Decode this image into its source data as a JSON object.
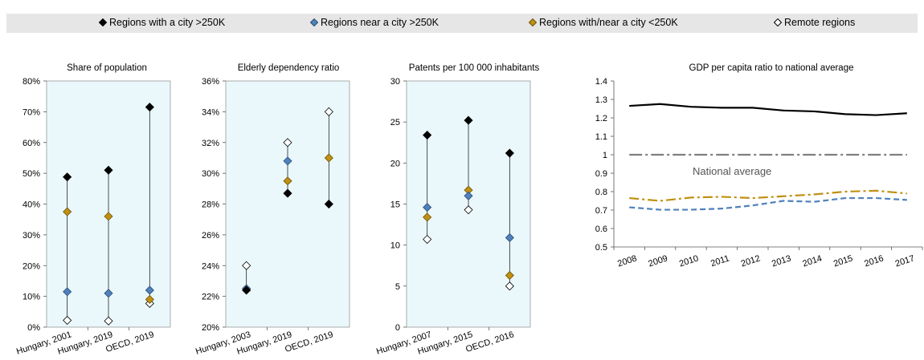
{
  "legend": [
    {
      "label": "Regions with a city >250K",
      "color": "#000000",
      "stroke": "#000000"
    },
    {
      "label": "Regions near a city >250K",
      "color": "#4f81bd",
      "stroke": "#2a4a70"
    },
    {
      "label": "Regions with/near a city <250K",
      "color": "#c09012",
      "stroke": "#6e530a"
    },
    {
      "label": "Remote regions",
      "color": "#ffffff",
      "stroke": "#000000"
    }
  ],
  "colors": {
    "panel_bg": "#eaf8fc",
    "national_line": "#7f7f7f",
    "near_line": "#4f81bd",
    "small_line": "#c09012"
  },
  "chart_data": [
    {
      "type": "scatter",
      "title": "Share of population",
      "categories": [
        "Hungary, 2001",
        "Hungary, 2019",
        "OECD, 2019"
      ],
      "ylim": [
        0,
        80
      ],
      "yticks": [
        0,
        10,
        20,
        30,
        40,
        50,
        60,
        70,
        80
      ],
      "ytick_labels": [
        "0%",
        "10%",
        "20%",
        "30%",
        "40%",
        "50%",
        "60%",
        "70%",
        "80%"
      ],
      "series": [
        {
          "name": "Regions with a city >250K",
          "values": [
            48.8,
            51,
            71.5
          ]
        },
        {
          "name": "Regions near a city >250K",
          "values": [
            11.5,
            11,
            12
          ]
        },
        {
          "name": "Regions with/near a city <250K",
          "values": [
            37.5,
            36,
            9
          ]
        },
        {
          "name": "Remote regions",
          "values": [
            2.2,
            2,
            7.7
          ]
        }
      ]
    },
    {
      "type": "scatter",
      "title": "Elderly dependency ratio",
      "categories": [
        "Hungary, 2003",
        "Hungary, 2019",
        "OECD, 2019"
      ],
      "ylim": [
        20,
        36
      ],
      "yticks": [
        20,
        22,
        24,
        26,
        28,
        30,
        32,
        34,
        36
      ],
      "ytick_labels": [
        "20%",
        "22%",
        "24%",
        "26%",
        "28%",
        "30%",
        "32%",
        "34%",
        "36%"
      ],
      "series": [
        {
          "name": "Regions with a city >250K",
          "values": [
            22.4,
            28.7,
            28
          ]
        },
        {
          "name": "Regions near a city >250K",
          "values": [
            22.5,
            30.8,
            null
          ]
        },
        {
          "name": "Regions with/near a city <250K",
          "values": [
            22.5,
            29.5,
            31
          ]
        },
        {
          "name": "Remote regions",
          "values": [
            24,
            32,
            34
          ]
        }
      ]
    },
    {
      "type": "scatter",
      "title": "Patents per 100 000 inhabitants",
      "categories": [
        "Hungary, 2007",
        "Hungary, 2015",
        "OECD, 2016"
      ],
      "ylim": [
        0,
        30
      ],
      "yticks": [
        0,
        5,
        10,
        15,
        20,
        25,
        30
      ],
      "ytick_labels": [
        "0",
        "5",
        "10",
        "15",
        "20",
        "25",
        "30"
      ],
      "series": [
        {
          "name": "Regions with a city >250K",
          "values": [
            23.4,
            25.2,
            21.2
          ]
        },
        {
          "name": "Regions near a city >250K",
          "values": [
            14.6,
            16,
            10.9
          ]
        },
        {
          "name": "Regions with/near a city <250K",
          "values": [
            13.4,
            16.7,
            6.3
          ]
        },
        {
          "name": "Remote regions",
          "values": [
            10.7,
            14.3,
            5
          ]
        }
      ]
    },
    {
      "type": "line",
      "title": "GDP per capita ratio to national average",
      "x": [
        "2008",
        "2009",
        "2010",
        "2011",
        "2012",
        "2013",
        "2014",
        "2015",
        "2016",
        "2017"
      ],
      "ylim": [
        0.5,
        1.4
      ],
      "yticks": [
        0.5,
        0.6,
        0.7,
        0.8,
        0.9,
        1,
        1.1,
        1.2,
        1.3,
        1.4
      ],
      "ytick_labels": [
        "0.5",
        "0.6",
        "0.7",
        "0.8",
        "0.9",
        "1",
        "1.1",
        "1.2",
        "1.3",
        "1.4"
      ],
      "annotation": "National average",
      "series": [
        {
          "name": "Regions with a city >250K",
          "values": [
            1.265,
            1.275,
            1.26,
            1.255,
            1.255,
            1.24,
            1.235,
            1.22,
            1.215,
            1.225
          ]
        },
        {
          "values": [
            1,
            1,
            1,
            1,
            1,
            1,
            1,
            1,
            1,
            1
          ]
        },
        {
          "name": "Regions with/near a city <250K",
          "values": [
            0.765,
            0.75,
            0.768,
            0.772,
            0.765,
            0.775,
            0.785,
            0.8,
            0.805,
            0.79
          ]
        },
        {
          "name": "Regions near a city >250K",
          "values": [
            0.715,
            0.702,
            0.702,
            0.708,
            0.725,
            0.75,
            0.745,
            0.765,
            0.765,
            0.755
          ]
        }
      ]
    }
  ]
}
